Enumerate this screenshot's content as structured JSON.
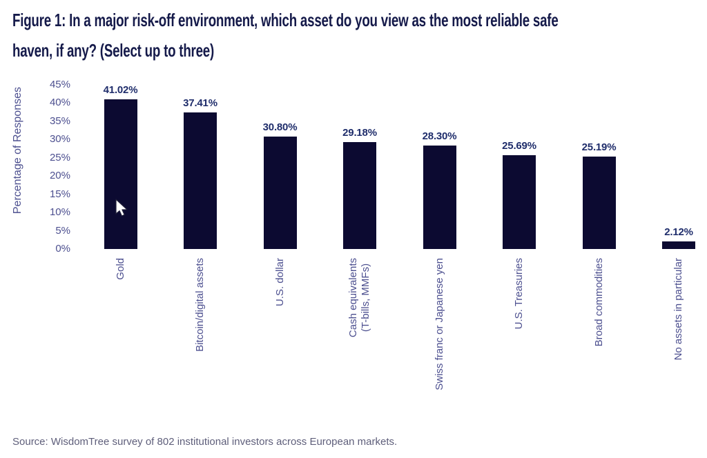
{
  "figure": {
    "title_lines": [
      "Figure 1: In a major risk-off environment, which asset do you view as the most reliable safe",
      "haven, if any? (Select up to three)"
    ]
  },
  "chart_data": {
    "type": "bar",
    "title": "Figure 1: In a major risk-off environment, which asset do you view as the most reliable safe haven, if any? (Select up to three)",
    "categories": [
      "Gold",
      "Bitcoin/digital assets",
      "U.S. dollar",
      "Cash equivalents\n(T-bills, MMFs)",
      "Swiss franc or Japanese yen",
      "U.S. Treasuries",
      "Broad commodities",
      "No assets in particular"
    ],
    "values": [
      41.02,
      37.41,
      30.8,
      29.18,
      28.3,
      25.69,
      25.19,
      2.12
    ],
    "value_labels": [
      "41.02%",
      "37.41%",
      "30.80%",
      "29.18%",
      "28.30%",
      "25.69%",
      "25.19%",
      "2.12%"
    ],
    "xlabel": "",
    "ylabel": "Percentage of Responses",
    "ylim": [
      0,
      45
    ],
    "ytick_step": 5,
    "yticks": [
      "0%",
      "5%",
      "10%",
      "15%",
      "20%",
      "25%",
      "30%",
      "35%",
      "40%",
      "45%"
    ],
    "grid": false,
    "legend": "none",
    "bar_orientation": "vertical",
    "xlabel_rotation_deg": 90
  },
  "source_note": "Source: WisdomTree survey of 802 institutional investors across European markets.",
  "colors": {
    "background": "#ffffff",
    "title": "#151a4a",
    "bar": "#0c0a31",
    "value_label": "#1f2d6b",
    "axis_text": "#4c4f8f",
    "source_text": "#5e5e7a"
  },
  "cursor": {
    "icon": "arrow-pointer",
    "visible": true
  }
}
